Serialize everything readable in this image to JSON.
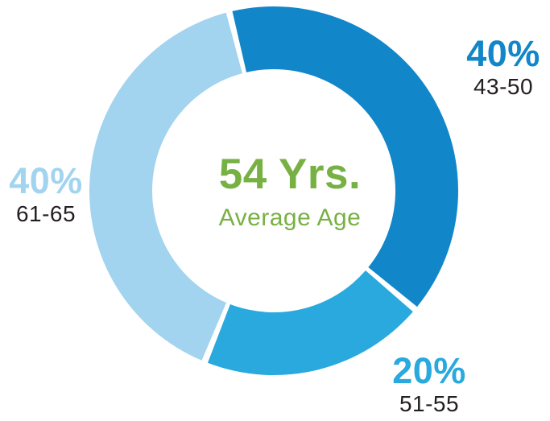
{
  "chart_data": {
    "type": "pie",
    "subtype": "donut",
    "title": "",
    "legend_position": "none",
    "start_angle_deg": 346,
    "center_label": {
      "value": "54 Yrs.",
      "caption": "Average Age",
      "color": "#78b143"
    },
    "segments": [
      {
        "pct_label": "40%",
        "percent": 40,
        "label": "43-50",
        "color": "#1186c8"
      },
      {
        "pct_label": "20%",
        "percent": 20,
        "label": "51-55",
        "color": "#29a9dd"
      },
      {
        "pct_label": "40%",
        "percent": 40,
        "label": "61-65",
        "color": "#a2d4ef"
      }
    ],
    "range_label_color": "#231f20",
    "background": "#ffffff"
  }
}
